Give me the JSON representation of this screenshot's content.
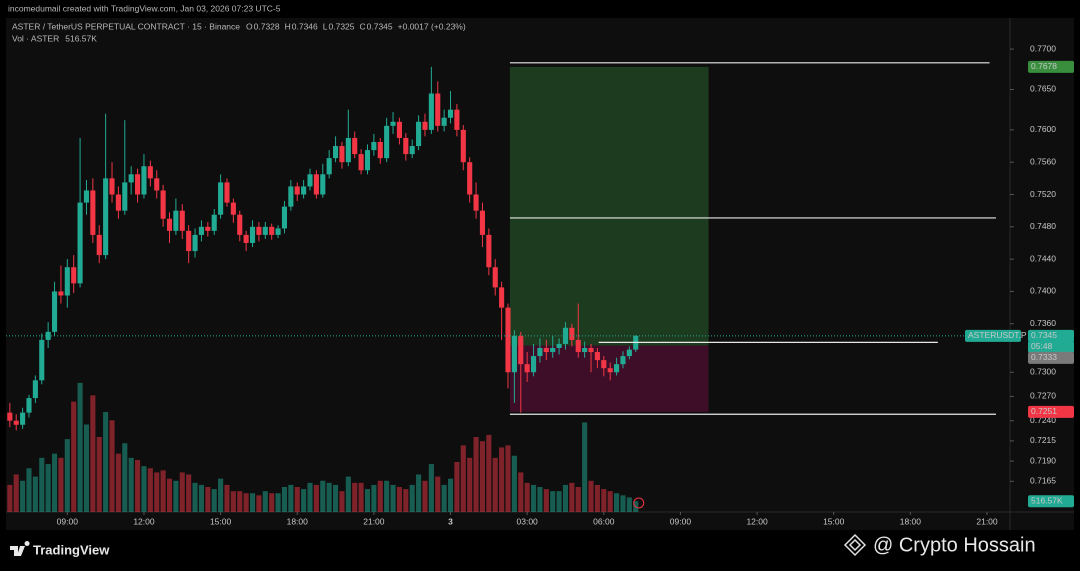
{
  "header": "incomedumail created with TradingView.com, Jan 03, 2026 07:23 UTC-5",
  "chart_data": {
    "type": "candlestick",
    "title": "ASTER / TetherUS PERPETUAL CONTRACT · 15 · Binance",
    "ohlc_letters": [
      "O",
      "H",
      "L",
      "C"
    ],
    "change": "+0.0017 (+0.23%)",
    "volume_title": "Vol · ASTER",
    "symbol": "ASTERUSDT.P",
    "countdown": "05:48",
    "up_color": "#22ab94",
    "down_color": "#f23645",
    "ylim": [
      0.7127,
      0.7736
    ],
    "xlim": [
      -0.6,
      156.6
    ],
    "grid": false,
    "yticks": [
      {
        "value": 0.77,
        "label": "0.7700"
      },
      {
        "value": 0.765,
        "label": "0.7650"
      },
      {
        "value": 0.76,
        "label": "0.7600"
      },
      {
        "value": 0.756,
        "label": "0.7560"
      },
      {
        "value": 0.752,
        "label": "0.7520"
      },
      {
        "value": 0.748,
        "label": "0.7480"
      },
      {
        "value": 0.744,
        "label": "0.7440"
      },
      {
        "value": 0.74,
        "label": "0.7400"
      },
      {
        "value": 0.736,
        "label": "0.7360"
      },
      {
        "value": 0.73,
        "label": "0.7300"
      },
      {
        "value": 0.727,
        "label": "0.7270"
      },
      {
        "value": 0.724,
        "label": "0.7240"
      },
      {
        "value": 0.7215,
        "label": "0.7215"
      },
      {
        "value": 0.719,
        "label": "0.7190"
      },
      {
        "value": 0.7165,
        "label": "0.7165"
      }
    ],
    "xticks": [
      {
        "value": 9,
        "label": "09:00"
      },
      {
        "value": 21,
        "label": "12:00"
      },
      {
        "value": 33,
        "label": "15:00"
      },
      {
        "value": 45,
        "label": "18:00"
      },
      {
        "value": 57,
        "label": "21:00"
      },
      {
        "value": 69,
        "label": "3"
      },
      {
        "value": 81,
        "label": "03:00"
      },
      {
        "value": 93,
        "label": "06:00"
      },
      {
        "value": 105,
        "label": "09:00"
      },
      {
        "value": 117,
        "label": "12:00"
      },
      {
        "value": 129,
        "label": "15:00"
      },
      {
        "value": 141,
        "label": "18:00"
      },
      {
        "value": 153,
        "label": "21:00"
      }
    ],
    "ohlc": [
      [
        0.725,
        0.7262,
        0.7232,
        0.724
      ],
      [
        0.724,
        0.7248,
        0.7228,
        0.7235
      ],
      [
        0.7235,
        0.7256,
        0.723,
        0.725
      ],
      [
        0.725,
        0.7272,
        0.7244,
        0.7268
      ],
      [
        0.7268,
        0.7296,
        0.7262,
        0.729
      ],
      [
        0.729,
        0.7348,
        0.7285,
        0.734
      ],
      [
        0.734,
        0.7362,
        0.733,
        0.735
      ],
      [
        0.735,
        0.7412,
        0.7345,
        0.74
      ],
      [
        0.74,
        0.7432,
        0.7385,
        0.7395
      ],
      [
        0.7395,
        0.744,
        0.738,
        0.743
      ],
      [
        0.743,
        0.7445,
        0.7398,
        0.741
      ],
      [
        0.741,
        0.759,
        0.7405,
        0.751
      ],
      [
        0.751,
        0.7538,
        0.7495,
        0.7525
      ],
      [
        0.7525,
        0.754,
        0.746,
        0.747
      ],
      [
        0.747,
        0.7482,
        0.7435,
        0.7445
      ],
      [
        0.7445,
        0.762,
        0.744,
        0.754
      ],
      [
        0.754,
        0.756,
        0.751,
        0.752
      ],
      [
        0.752,
        0.753,
        0.749,
        0.75
      ],
      [
        0.75,
        0.7612,
        0.7495,
        0.7535
      ],
      [
        0.7535,
        0.7555,
        0.752,
        0.7545
      ],
      [
        0.7545,
        0.7552,
        0.751,
        0.752
      ],
      [
        0.752,
        0.757,
        0.7515,
        0.7555
      ],
      [
        0.7555,
        0.7562,
        0.753,
        0.754
      ],
      [
        0.754,
        0.755,
        0.7515,
        0.7525
      ],
      [
        0.7525,
        0.7532,
        0.748,
        0.749
      ],
      [
        0.749,
        0.7498,
        0.746,
        0.7475
      ],
      [
        0.7475,
        0.7515,
        0.747,
        0.75
      ],
      [
        0.75,
        0.7508,
        0.7465,
        0.7475
      ],
      [
        0.7475,
        0.7482,
        0.7435,
        0.745
      ],
      [
        0.745,
        0.7478,
        0.7442,
        0.747
      ],
      [
        0.747,
        0.7488,
        0.7462,
        0.748
      ],
      [
        0.748,
        0.7486,
        0.7468,
        0.7475
      ],
      [
        0.7475,
        0.7502,
        0.747,
        0.7495
      ],
      [
        0.7495,
        0.7545,
        0.749,
        0.7535
      ],
      [
        0.7535,
        0.754,
        0.7505,
        0.751
      ],
      [
        0.751,
        0.7515,
        0.7485,
        0.7495
      ],
      [
        0.7495,
        0.75,
        0.7462,
        0.747
      ],
      [
        0.747,
        0.7475,
        0.745,
        0.746
      ],
      [
        0.746,
        0.7488,
        0.7455,
        0.748
      ],
      [
        0.748,
        0.7486,
        0.7462,
        0.747
      ],
      [
        0.747,
        0.7486,
        0.7465,
        0.748
      ],
      [
        0.748,
        0.7484,
        0.7464,
        0.747
      ],
      [
        0.747,
        0.7482,
        0.7466,
        0.7478
      ],
      [
        0.7478,
        0.7512,
        0.7472,
        0.7505
      ],
      [
        0.7505,
        0.7538,
        0.75,
        0.753
      ],
      [
        0.753,
        0.7535,
        0.7512,
        0.752
      ],
      [
        0.752,
        0.7538,
        0.7515,
        0.753
      ],
      [
        0.753,
        0.7552,
        0.7525,
        0.7545
      ],
      [
        0.7545,
        0.755,
        0.7515,
        0.752
      ],
      [
        0.752,
        0.7558,
        0.7516,
        0.7545
      ],
      [
        0.7545,
        0.7575,
        0.754,
        0.7565
      ],
      [
        0.7565,
        0.7592,
        0.756,
        0.758
      ],
      [
        0.758,
        0.7585,
        0.7552,
        0.756
      ],
      [
        0.756,
        0.7625,
        0.7555,
        0.759
      ],
      [
        0.759,
        0.7598,
        0.7565,
        0.757
      ],
      [
        0.757,
        0.7576,
        0.7545,
        0.755
      ],
      [
        0.755,
        0.7582,
        0.7545,
        0.7575
      ],
      [
        0.7575,
        0.7595,
        0.7568,
        0.7585
      ],
      [
        0.7585,
        0.759,
        0.7558,
        0.7565
      ],
      [
        0.7565,
        0.7615,
        0.756,
        0.7605
      ],
      [
        0.7605,
        0.7622,
        0.7595,
        0.761
      ],
      [
        0.761,
        0.7615,
        0.7582,
        0.759
      ],
      [
        0.759,
        0.7596,
        0.7562,
        0.757
      ],
      [
        0.757,
        0.7588,
        0.7565,
        0.758
      ],
      [
        0.758,
        0.7618,
        0.7575,
        0.761
      ],
      [
        0.761,
        0.762,
        0.7592,
        0.76
      ],
      [
        0.76,
        0.7678,
        0.7595,
        0.7645
      ],
      [
        0.7645,
        0.766,
        0.7598,
        0.7605
      ],
      [
        0.7605,
        0.7625,
        0.7598,
        0.7615
      ],
      [
        0.7615,
        0.7648,
        0.7608,
        0.7625
      ],
      [
        0.7625,
        0.7632,
        0.7592,
        0.76
      ],
      [
        0.76,
        0.7606,
        0.755,
        0.756
      ],
      [
        0.756,
        0.7566,
        0.751,
        0.752
      ],
      [
        0.752,
        0.7535,
        0.749,
        0.75
      ],
      [
        0.75,
        0.751,
        0.7455,
        0.747
      ],
      [
        0.747,
        0.7478,
        0.742,
        0.743
      ],
      [
        0.743,
        0.744,
        0.7395,
        0.7405
      ],
      [
        0.7405,
        0.7412,
        0.734,
        0.738
      ],
      [
        0.738,
        0.7385,
        0.728,
        0.73
      ],
      [
        0.73,
        0.7352,
        0.7262,
        0.7345
      ],
      [
        0.7345,
        0.735,
        0.725,
        0.731
      ],
      [
        0.731,
        0.7325,
        0.7288,
        0.73
      ],
      [
        0.73,
        0.7335,
        0.7295,
        0.732
      ],
      [
        0.732,
        0.7342,
        0.7312,
        0.733
      ],
      [
        0.733,
        0.734,
        0.7315,
        0.7325
      ],
      [
        0.7325,
        0.7345,
        0.7318,
        0.733
      ],
      [
        0.733,
        0.7342,
        0.7322,
        0.7335
      ],
      [
        0.7335,
        0.7362,
        0.7328,
        0.7355
      ],
      [
        0.7355,
        0.736,
        0.7332,
        0.734
      ],
      [
        0.734,
        0.7385,
        0.7318,
        0.7325
      ],
      [
        0.7325,
        0.7338,
        0.7318,
        0.733
      ],
      [
        0.733,
        0.7335,
        0.73,
        0.7325
      ],
      [
        0.7325,
        0.733,
        0.7305,
        0.7315
      ],
      [
        0.7315,
        0.732,
        0.7295,
        0.7305
      ],
      [
        0.7305,
        0.7312,
        0.729,
        0.73
      ],
      [
        0.73,
        0.7318,
        0.7296,
        0.731
      ],
      [
        0.731,
        0.7326,
        0.7305,
        0.732
      ],
      [
        0.732,
        0.7332,
        0.7316,
        0.7328
      ],
      [
        0.7328,
        0.7346,
        0.7325,
        0.7345
      ]
    ],
    "volume": {
      "ylim": [
        0,
        12000
      ],
      "values": [
        1300,
        1800,
        1500,
        2100,
        1700,
        2600,
        2300,
        2800,
        2600,
        3500,
        5300,
        6200,
        4200,
        5600,
        3600,
        4800,
        4400,
        2800,
        3300,
        2600,
        2500,
        2200,
        2100,
        1900,
        2000,
        1600,
        1500,
        1900,
        1800,
        1400,
        1300,
        1200,
        1100,
        1600,
        1300,
        1000,
        1000,
        900,
        900,
        800,
        1000,
        900,
        900,
        1200,
        1300,
        1200,
        1100,
        1400,
        1300,
        1500,
        1400,
        1300,
        1000,
        1700,
        1400,
        1400,
        1100,
        1300,
        1500,
        1500,
        1300,
        1200,
        1100,
        1300,
        1800,
        1500,
        2300,
        1700,
        1300,
        1600,
        2400,
        3200,
        2600,
        3600,
        3400,
        3700,
        2600,
        3100,
        3200,
        2700,
        1900,
        1400,
        1300,
        1200,
        1100,
        1000,
        1000,
        1300,
        1400,
        1200,
        4300,
        1500,
        1300,
        1100,
        1000,
        900,
        800,
        700,
        516.57
      ],
      "last_label": "516.57K"
    },
    "position": {
      "x_start": 78.3,
      "x_end": 109.4,
      "target": 0.7678,
      "entry": 0.7333,
      "stop": 0.7251
    },
    "lines": [
      {
        "value": 0.7683,
        "x": [
          78.3,
          153.4
        ]
      },
      {
        "value": 0.7491,
        "x": [
          78.3,
          154.4
        ]
      },
      {
        "value": 0.7337,
        "x": [
          92.2,
          145.3
        ]
      },
      {
        "value": 0.7248,
        "x": [
          78.3,
          154.4
        ]
      }
    ]
  },
  "footer": {
    "brand": "TradingView",
    "watermark": "@ Crypto Hossain"
  }
}
